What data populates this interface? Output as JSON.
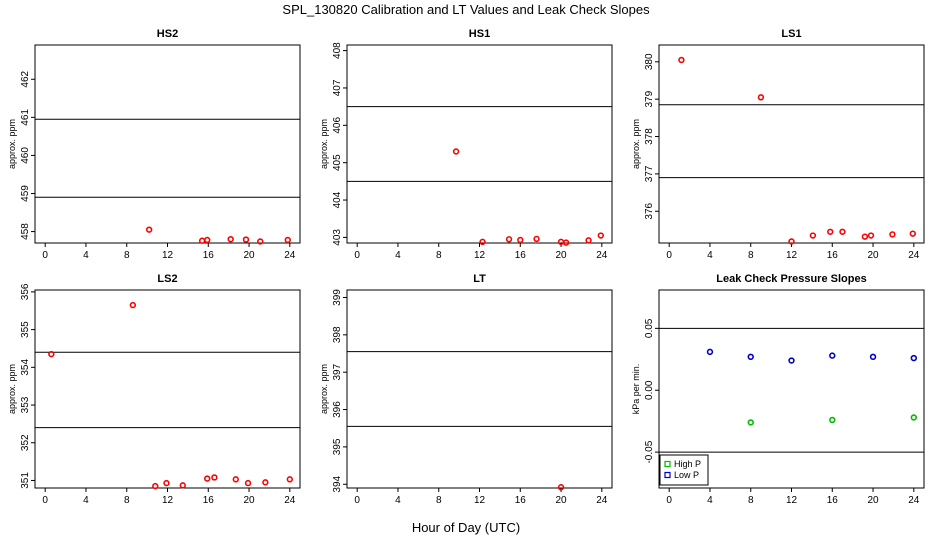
{
  "figure": {
    "title": "SPL_130820  Calibration and LT Values and Leak Check Slopes",
    "xlabel": "Hour of Day (UTC)"
  },
  "chart_data": [
    {
      "type": "scatter",
      "title": "HS2",
      "ylabel": "approx. ppm",
      "xlim": [
        -1,
        25
      ],
      "ylim": [
        457.7,
        462.9
      ],
      "xticks": [
        "0",
        "4",
        "8",
        "12",
        "16",
        "20",
        "24"
      ],
      "yticks": [
        "458",
        "459",
        "460",
        "461",
        "462"
      ],
      "hlines": [
        458.9,
        460.95
      ],
      "series": [
        {
          "name": "values",
          "color": "#ff0000",
          "marker": "circle",
          "x": [
            10.2,
            15.4,
            15.9,
            18.2,
            19.7,
            21.1,
            23.8
          ],
          "y": [
            458.05,
            457.76,
            457.78,
            457.8,
            457.79,
            457.74,
            457.78
          ]
        }
      ]
    },
    {
      "type": "scatter",
      "title": "HS1",
      "ylabel": "approx. ppm",
      "xlim": [
        -1,
        25
      ],
      "ylim": [
        402.85,
        408.15
      ],
      "xticks": [
        "0",
        "4",
        "8",
        "12",
        "16",
        "20",
        "24"
      ],
      "yticks": [
        "403",
        "404",
        "405",
        "406",
        "407",
        "408"
      ],
      "hlines": [
        404.5,
        406.5
      ],
      "series": [
        {
          "name": "values",
          "color": "#ff0000",
          "marker": "circle",
          "x": [
            9.7,
            12.3,
            14.9,
            16.0,
            17.6,
            20.0,
            20.5,
            22.7,
            23.9
          ],
          "y": [
            405.3,
            402.88,
            402.95,
            402.93,
            402.96,
            402.88,
            402.86,
            402.92,
            403.05
          ]
        }
      ]
    },
    {
      "type": "scatter",
      "title": "LS1",
      "ylabel": "approx. ppm",
      "xlim": [
        -1,
        25
      ],
      "ylim": [
        375.15,
        380.45
      ],
      "xticks": [
        "0",
        "4",
        "8",
        "12",
        "16",
        "20",
        "24"
      ],
      "yticks": [
        "376",
        "377",
        "378",
        "379",
        "380"
      ],
      "hlines": [
        376.9,
        378.85
      ],
      "series": [
        {
          "name": "values",
          "color": "#ff0000",
          "marker": "circle",
          "x": [
            1.2,
            9.0,
            12.0,
            14.1,
            15.8,
            17.0,
            19.2,
            19.8,
            21.9,
            23.9
          ],
          "y": [
            380.05,
            379.05,
            375.19,
            375.35,
            375.45,
            375.45,
            375.32,
            375.35,
            375.38,
            375.4
          ]
        }
      ]
    },
    {
      "type": "scatter",
      "title": "LS2",
      "ylabel": "approx. ppm",
      "xlim": [
        -1,
        25
      ],
      "ylim": [
        350.8,
        356.05
      ],
      "xticks": [
        "0",
        "4",
        "8",
        "12",
        "16",
        "20",
        "24"
      ],
      "yticks": [
        "351",
        "352",
        "353",
        "354",
        "355",
        "356"
      ],
      "hlines": [
        352.4,
        354.4
      ],
      "series": [
        {
          "name": "values",
          "color": "#ff0000",
          "marker": "circle",
          "x": [
            0.6,
            8.6,
            10.8,
            11.9,
            13.5,
            15.9,
            16.6,
            18.7,
            19.9,
            21.6,
            24.0
          ],
          "y": [
            354.35,
            355.65,
            350.85,
            350.93,
            350.87,
            351.05,
            351.08,
            351.03,
            350.93,
            350.95,
            351.03
          ]
        }
      ]
    },
    {
      "type": "scatter",
      "title": "LT",
      "ylabel": "approx. ppm",
      "xlim": [
        -1,
        25
      ],
      "ylim": [
        393.9,
        399.2
      ],
      "xticks": [
        "0",
        "4",
        "8",
        "12",
        "16",
        "20",
        "24"
      ],
      "yticks": [
        "394",
        "395",
        "396",
        "397",
        "398",
        "399"
      ],
      "hlines": [
        395.55,
        397.55
      ],
      "series": [
        {
          "name": "values",
          "color": "#ff0000",
          "marker": "circle",
          "x": [
            20.0
          ],
          "y": [
            393.92
          ]
        }
      ]
    },
    {
      "type": "scatter",
      "title": "Leak Check Pressure Slopes",
      "ylabel": "kPa per min.",
      "xlim": [
        -1,
        25
      ],
      "ylim": [
        -0.079,
        0.081
      ],
      "xticks": [
        "0",
        "4",
        "8",
        "12",
        "16",
        "20",
        "24"
      ],
      "yticks": [
        "-0.05",
        "0.00",
        "0.05"
      ],
      "hlines": [
        -0.05,
        0.05
      ],
      "legend": {
        "position": "bottom-left",
        "entries": [
          "High P",
          "Low P"
        ]
      },
      "series": [
        {
          "name": "High P",
          "color": "#00bb00",
          "marker": "circle",
          "x": [
            8,
            16,
            24
          ],
          "y": [
            -0.026,
            -0.024,
            -0.022
          ]
        },
        {
          "name": "Low P",
          "color": "#0000cc",
          "marker": "circle",
          "x": [
            4,
            8,
            12,
            16,
            20,
            24
          ],
          "y": [
            0.031,
            0.027,
            0.024,
            0.028,
            0.027,
            0.026
          ]
        }
      ]
    }
  ]
}
